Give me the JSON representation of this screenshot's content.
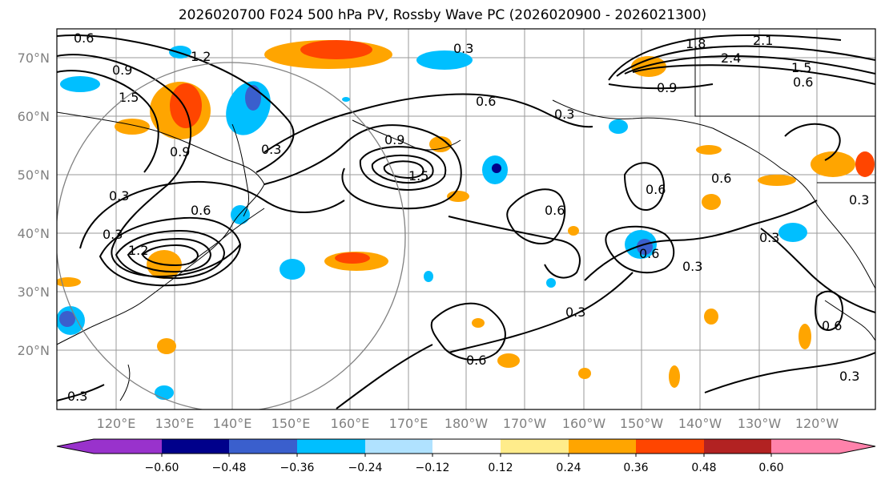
{
  "title": "2026020700 F024 500 hPa PV, Rossby Wave PC (2026020900 - 2026021300)",
  "lat_labels": [
    "70°N",
    "60°N",
    "50°N",
    "40°N",
    "30°N",
    "20°N"
  ],
  "lon_labels": [
    "120°E",
    "130°E",
    "140°E",
    "150°E",
    "160°E",
    "170°E",
    "180°W",
    "170°W",
    "160°W",
    "150°W",
    "140°W",
    "130°W",
    "120°W"
  ],
  "colorbar": {
    "colors": [
      "#9932cc",
      "#00008b",
      "#3a5fcd",
      "#00bfff",
      "#b0e2ff",
      "#ffffff",
      "#ffec8b",
      "#ffa500",
      "#ff4500",
      "#b22222",
      "#ff82ab"
    ],
    "ticks": [
      "−0.60",
      "−0.48",
      "−0.36",
      "−0.24",
      "−0.12",
      "0.12",
      "0.24",
      "0.36",
      "0.48",
      "0.60"
    ]
  },
  "contour_labels": [
    "0.6",
    "0.9",
    "1.2",
    "1.5",
    "0.3",
    "0.6",
    "0.9",
    "1.5",
    "0.3",
    "0.6",
    "0.3",
    "0.9",
    "1.8",
    "2.1",
    "2.4",
    "1.5",
    "0.6",
    "0.9",
    "0.3",
    "0.6",
    "0.6",
    "0.6",
    "0.3",
    "0.3",
    "0.6",
    "0.3",
    "0.3",
    "0.6",
    "0.6",
    "0.3",
    "0.3",
    "0.3",
    "1.2"
  ]
}
